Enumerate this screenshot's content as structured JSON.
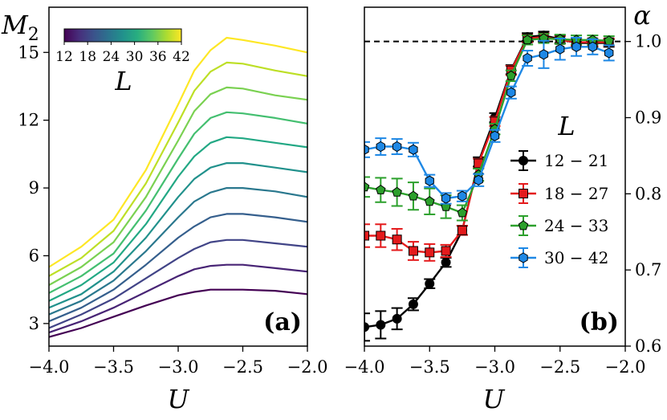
{
  "chart_data": [
    {
      "panel": "a",
      "type": "line",
      "panel_label": "(a)",
      "xlabel": "U",
      "ylabel_main": "M",
      "ylabel_sub": "2",
      "xlim": [
        -4.0,
        -2.0
      ],
      "ylim": [
        2.0,
        17.0
      ],
      "xticks": [
        -4.0,
        -3.5,
        -3.0,
        -2.5,
        -2.0
      ],
      "xtick_labels": [
        "−4.0",
        "−3.5",
        "−3.0",
        "−2.5",
        "−2.0"
      ],
      "yticks": [
        3,
        6,
        9,
        12,
        15
      ],
      "ytick_labels": [
        "3",
        "6",
        "9",
        "12",
        "15"
      ],
      "colorbar": {
        "label": "L",
        "ticks": [
          12,
          18,
          24,
          30,
          36,
          42
        ],
        "tick_labels": [
          "12",
          "18",
          "24",
          "30",
          "36",
          "42"
        ],
        "colors": [
          "#440154",
          "#472d7b",
          "#3b528b",
          "#2c728e",
          "#21918c",
          "#28ae80",
          "#5ec962",
          "#addc30",
          "#fde725"
        ]
      },
      "x": [
        -4.0,
        -3.75,
        -3.5,
        -3.25,
        -3.0,
        -2.875,
        -2.75,
        -2.625,
        -2.5,
        -2.25,
        -2.0
      ],
      "series": [
        {
          "name": "L=12",
          "color": "#440154",
          "values": [
            2.4,
            2.8,
            3.3,
            3.8,
            4.25,
            4.4,
            4.5,
            4.5,
            4.5,
            4.45,
            4.3
          ]
        },
        {
          "name": "L=15",
          "color": "#482475",
          "values": [
            2.6,
            3.1,
            3.7,
            4.4,
            5.1,
            5.4,
            5.55,
            5.6,
            5.6,
            5.45,
            5.3
          ]
        },
        {
          "name": "L=18",
          "color": "#414487",
          "values": [
            2.8,
            3.4,
            4.1,
            5.0,
            5.9,
            6.3,
            6.6,
            6.7,
            6.7,
            6.55,
            6.4
          ]
        },
        {
          "name": "L=21",
          "color": "#355f8d",
          "values": [
            3.1,
            3.7,
            4.5,
            5.6,
            6.8,
            7.3,
            7.7,
            7.85,
            7.85,
            7.7,
            7.5
          ]
        },
        {
          "name": "L=24",
          "color": "#2a788e",
          "values": [
            3.4,
            4.0,
            4.9,
            6.2,
            7.7,
            8.4,
            8.8,
            9.0,
            9.0,
            8.85,
            8.6
          ]
        },
        {
          "name": "L=27",
          "color": "#21918c",
          "values": [
            3.7,
            4.3,
            5.3,
            6.8,
            8.6,
            9.4,
            9.9,
            10.1,
            10.1,
            9.9,
            9.7
          ]
        },
        {
          "name": "L=30",
          "color": "#22a884",
          "values": [
            4.0,
            4.7,
            5.7,
            7.4,
            9.5,
            10.4,
            11.0,
            11.25,
            11.2,
            11.0,
            10.8
          ]
        },
        {
          "name": "L=33",
          "color": "#44bf70",
          "values": [
            4.35,
            5.1,
            6.1,
            8.0,
            10.3,
            11.4,
            12.1,
            12.35,
            12.3,
            12.1,
            11.85
          ]
        },
        {
          "name": "L=36",
          "color": "#7ad151",
          "values": [
            4.7,
            5.5,
            6.6,
            8.6,
            11.1,
            12.4,
            13.15,
            13.45,
            13.4,
            13.1,
            12.9
          ]
        },
        {
          "name": "L=39",
          "color": "#bddf26",
          "values": [
            5.1,
            5.9,
            7.1,
            9.2,
            11.9,
            13.3,
            14.15,
            14.55,
            14.5,
            14.2,
            13.95
          ]
        },
        {
          "name": "L=42",
          "color": "#fde725",
          "values": [
            5.5,
            6.4,
            7.6,
            9.8,
            12.7,
            14.2,
            15.1,
            15.65,
            15.55,
            15.3,
            15.0
          ]
        }
      ]
    },
    {
      "panel": "b",
      "type": "line",
      "panel_label": "(b)",
      "xlabel": "U",
      "ylabel": "α",
      "xlim": [
        -4.0,
        -2.0
      ],
      "ylim": [
        0.6,
        1.045
      ],
      "reference_line": 1.0,
      "xticks": [
        -4.0,
        -3.5,
        -3.0,
        -2.5,
        -2.0
      ],
      "xtick_labels": [
        "−4.0",
        "−3.5",
        "−3.0",
        "−2.5",
        "−2.0"
      ],
      "yticks": [
        0.6,
        0.7,
        0.8,
        0.9,
        1.0
      ],
      "ytick_labels": [
        "0.6",
        "0.7",
        "0.8",
        "0.9",
        "1.0"
      ],
      "legend_title": "L",
      "legend_position": "center-right",
      "x": [
        -4.0,
        -3.875,
        -3.75,
        -3.625,
        -3.5,
        -3.375,
        -3.25,
        -3.125,
        -3.0,
        -2.875,
        -2.75,
        -2.625,
        -2.5,
        -2.375,
        -2.25,
        -2.125
      ],
      "series": [
        {
          "name": "12 − 21",
          "color": "#000000",
          "marker": "circle",
          "values": [
            0.625,
            0.628,
            0.636,
            0.655,
            0.682,
            0.71,
            0.752,
            0.842,
            0.9,
            0.963,
            1.006,
            1.008,
            1.003,
            0.998,
            0.998,
            0.998
          ],
          "errors": [
            0.018,
            0.018,
            0.014,
            0.008,
            0.006,
            0.006,
            0.006,
            0.006,
            0.006,
            0.006,
            0.005,
            0.005,
            0.005,
            0.005,
            0.005,
            0.005
          ]
        },
        {
          "name": "18 − 27",
          "color": "#e41a1c",
          "marker": "square",
          "values": [
            0.745,
            0.745,
            0.74,
            0.725,
            0.723,
            0.725,
            0.752,
            0.84,
            0.895,
            0.962,
            1.004,
            1.006,
            1.002,
            0.999,
            0.999,
            0.999
          ],
          "errors": [
            0.015,
            0.015,
            0.014,
            0.012,
            0.011,
            0.008,
            0.006,
            0.006,
            0.006,
            0.006,
            0.005,
            0.005,
            0.005,
            0.005,
            0.005,
            0.005
          ]
        },
        {
          "name": "24 − 33",
          "color": "#2ca02c",
          "marker": "pentagon",
          "values": [
            0.809,
            0.805,
            0.802,
            0.797,
            0.79,
            0.783,
            0.775,
            0.825,
            0.885,
            0.955,
            1.002,
            1.004,
            1.003,
            1.002,
            1.002,
            1.001
          ],
          "errors": [
            0.013,
            0.016,
            0.018,
            0.018,
            0.017,
            0.015,
            0.01,
            0.008,
            0.007,
            0.007,
            0.006,
            0.006,
            0.006,
            0.006,
            0.006,
            0.006
          ]
        },
        {
          "name": "30 − 42",
          "color": "#1e88e5",
          "marker": "hexagon",
          "values": [
            0.858,
            0.862,
            0.862,
            0.858,
            0.817,
            0.794,
            0.797,
            0.818,
            0.876,
            0.933,
            0.978,
            0.983,
            0.99,
            0.993,
            0.993,
            0.985
          ],
          "errors": [
            0.01,
            0.011,
            0.01,
            0.009,
            0.008,
            0.007,
            0.007,
            0.008,
            0.008,
            0.008,
            0.01,
            0.018,
            0.014,
            0.012,
            0.01,
            0.01
          ]
        }
      ]
    }
  ]
}
